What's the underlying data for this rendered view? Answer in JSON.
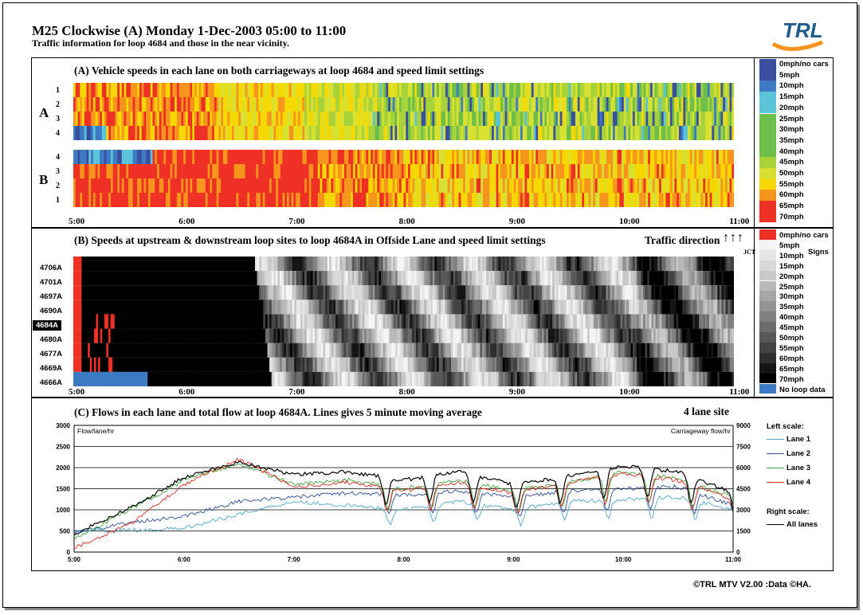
{
  "header": {
    "title": "M25 Clockwise (A) Monday 1-Dec-2003  05:00 to 11:00",
    "subtitle": "Traffic information for loop 4684 and those in the near vicinity.",
    "logo_text": "TRL"
  },
  "time_ticks": [
    "5:00",
    "6:00",
    "7:00",
    "8:00",
    "9:00",
    "10:00",
    "11:00"
  ],
  "panel_a": {
    "title": "(A) Vehicle speeds in each lane on both carriageways at loop 4684 and speed limit settings",
    "carriageway_a_label": "A",
    "carriageway_b_label": "B",
    "lanes_a": [
      "1",
      "2",
      "3",
      "4"
    ],
    "lanes_b": [
      "4",
      "3",
      "2",
      "1"
    ],
    "legend": [
      {
        "label": "0mph/no cars",
        "color": "#3a4fa0"
      },
      {
        "label": "5mph",
        "color": "#3a4fa0"
      },
      {
        "label": "10mph",
        "color": "#3d7bc4"
      },
      {
        "label": "15mph",
        "color": "#5bc4d8"
      },
      {
        "label": "20mph",
        "color": "#5bc4d8"
      },
      {
        "label": "25mph",
        "color": "#6cbf4a"
      },
      {
        "label": "30mph",
        "color": "#6cbf4a"
      },
      {
        "label": "35mph",
        "color": "#6cbf4a"
      },
      {
        "label": "40mph",
        "color": "#6cbf4a"
      },
      {
        "label": "45mph",
        "color": "#a8d23a"
      },
      {
        "label": "50mph",
        "color": "#d8e030"
      },
      {
        "label": "55mph",
        "color": "#f5d800"
      },
      {
        "label": "60mph",
        "color": "#f7941d"
      },
      {
        "label": "65mph",
        "color": "#ee3124"
      },
      {
        "label": "70mph",
        "color": "#ee3124"
      }
    ]
  },
  "panel_b": {
    "title": "(B) Speeds at upstream & downstream loop sites to loop 4684A in Offside Lane and speed limit settings",
    "traffic_direction": "Traffic direction",
    "arrows": "↑↑↑",
    "jct": "JCT",
    "signs": "Signs",
    "sites": [
      "4706A",
      "4701A",
      "4697A",
      "4690A",
      "4684A",
      "4680A",
      "4677A",
      "4669A",
      "4666A"
    ],
    "highlighted_site": "4684A",
    "legend": [
      {
        "label": "0mph/no cars",
        "color": "#ee3124"
      },
      {
        "label": "5mph",
        "color": "#f4f4f4"
      },
      {
        "label": "10mph",
        "color": "#e6e6e6"
      },
      {
        "label": "15mph",
        "color": "#d8d8d8"
      },
      {
        "label": "20mph",
        "color": "#c8c8c8"
      },
      {
        "label": "25mph",
        "color": "#b8b8b8"
      },
      {
        "label": "30mph",
        "color": "#a6a6a6"
      },
      {
        "label": "35mph",
        "color": "#949494"
      },
      {
        "label": "40mph",
        "color": "#808080"
      },
      {
        "label": "45mph",
        "color": "#6c6c6c"
      },
      {
        "label": "50mph",
        "color": "#585858"
      },
      {
        "label": "55mph",
        "color": "#444444"
      },
      {
        "label": "60mph",
        "color": "#2e2e2e"
      },
      {
        "label": "65mph",
        "color": "#151515"
      },
      {
        "label": "70mph",
        "color": "#000000"
      },
      {
        "label": "No loop data",
        "color": "#3d7bc4"
      }
    ]
  },
  "panel_c": {
    "title": "(C) Flows in each lane and total flow at loop 4684A. Lines gives 5 minute moving average",
    "site_note": "4 lane site",
    "left_axis_label": "Flow/lane/hr",
    "right_axis_label": "Carriageway flow/hr",
    "left_ticks": [
      "3000",
      "2500",
      "2000",
      "1500",
      "1000",
      "500",
      "0"
    ],
    "right_ticks": [
      "9000",
      "7500",
      "6000",
      "4500",
      "3000",
      "1500",
      "0"
    ],
    "legend_left_title": "Left scale:",
    "legend_right_title": "Right scale:",
    "series": [
      {
        "name": "Lane 1",
        "color": "#4aa8c8"
      },
      {
        "name": "Lane 2",
        "color": "#2a4a9a"
      },
      {
        "name": "Lane 3",
        "color": "#3ea83a"
      },
      {
        "name": "Lane 4",
        "color": "#e02a1a"
      },
      {
        "name": "All lanes",
        "color": "#000000"
      }
    ]
  },
  "chart_data": [
    {
      "type": "heatmap",
      "title": "(A) Vehicle speeds in each lane on both carriageways at loop 4684 and speed limit settings",
      "x": [
        "5:00",
        "6:00",
        "7:00",
        "8:00",
        "9:00",
        "10:00",
        "11:00"
      ],
      "rows": [
        "A 1",
        "A 2",
        "A 3",
        "A 4",
        "B 4",
        "B 3",
        "B 2",
        "B 1"
      ],
      "value_units": "mph",
      "summary_by_hour": {
        "A": [
          55,
          60,
          45,
          40,
          35,
          40
        ],
        "B": [
          60,
          65,
          55,
          55,
          55,
          55
        ]
      }
    },
    {
      "type": "heatmap",
      "title": "(B) Speeds at upstream & downstream loop sites to loop 4684A in Offside Lane and speed limit settings",
      "x": [
        "5:00",
        "6:00",
        "7:00",
        "8:00",
        "9:00",
        "10:00",
        "11:00"
      ],
      "rows": [
        "4706A",
        "4701A",
        "4697A",
        "4690A",
        "4684A",
        "4680A",
        "4677A",
        "4669A",
        "4666A"
      ],
      "value_units": "mph",
      "summary_by_hour": [
        70,
        70,
        30,
        25,
        30,
        45
      ]
    },
    {
      "type": "line",
      "title": "(C) Flows in each lane and total flow at loop 4684A. Lines gives 5 minute moving average",
      "xlabel": "",
      "ylabel": "Flow/lane/hr",
      "y2label": "Carriageway flow/hr",
      "x": [
        "5:00",
        "5:30",
        "6:00",
        "6:30",
        "7:00",
        "7:30",
        "8:00",
        "8:30",
        "9:00",
        "9:30",
        "10:00",
        "10:30",
        "11:00"
      ],
      "ylim": [
        0,
        3000
      ],
      "y2lim": [
        0,
        9000
      ],
      "series": [
        {
          "name": "Lane 1",
          "axis": "left",
          "values": [
            500,
            520,
            560,
            900,
            1200,
            1100,
            1000,
            1200,
            1000,
            1200,
            1250,
            1300,
            1000
          ]
        },
        {
          "name": "Lane 2",
          "axis": "left",
          "values": [
            450,
            700,
            850,
            1200,
            1300,
            1400,
            1350,
            1450,
            1300,
            1450,
            1500,
            1550,
            1100
          ]
        },
        {
          "name": "Lane 3",
          "axis": "left",
          "values": [
            300,
            1000,
            1700,
            2100,
            1600,
            1700,
            1500,
            1700,
            1450,
            1650,
            1900,
            1750,
            1300
          ]
        },
        {
          "name": "Lane 4",
          "axis": "left",
          "values": [
            100,
            650,
            1600,
            2200,
            1550,
            1650,
            1450,
            1650,
            1400,
            1650,
            1850,
            1700,
            1250
          ]
        },
        {
          "name": "All lanes",
          "axis": "right",
          "values": [
            1300,
            3100,
            5300,
            6400,
            5500,
            5700,
            5100,
            5700,
            4800,
            5400,
            6100,
            5700,
            4200
          ]
        }
      ]
    }
  ],
  "footer": "©TRL MTV  V2.00  :Data ©HA."
}
